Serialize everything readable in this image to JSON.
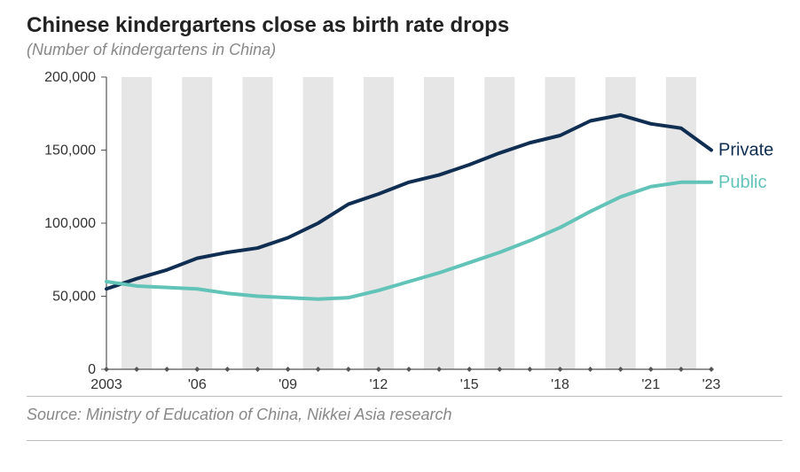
{
  "title": "Chinese kindergartens close as birth rate drops",
  "subtitle": "(Number of kindergartens in China)",
  "source": "Source: Ministry of Education of China, Nikkei Asia research",
  "chart": {
    "type": "line",
    "background_color": "#ffffff",
    "band_color": "#e6e6e6",
    "axis_color": "#555555",
    "tick_font_size": 16,
    "title_font_size": 24,
    "title_color": "#222222",
    "subtitle_font_size": 18,
    "subtitle_color": "#888888",
    "source_font_size": 18,
    "source_color": "#888888",
    "line_width": 4,
    "marker_on_axis": true,
    "x": {
      "start": 2003,
      "end": 2023,
      "ticks": [
        2003,
        2006,
        2009,
        2012,
        2015,
        2018,
        2021,
        2023
      ],
      "tick_labels": [
        "2003",
        "'06",
        "'09",
        "'12",
        "'15",
        "'18",
        "'21",
        "'23"
      ]
    },
    "y": {
      "min": 0,
      "max": 200000,
      "ticks": [
        0,
        50000,
        100000,
        150000,
        200000
      ],
      "tick_labels": [
        "0",
        "50,000",
        "100,000",
        "150,000",
        "200,000"
      ]
    },
    "series": [
      {
        "name": "Private",
        "color": "#0f2e52",
        "label_color": "#0f2e52",
        "years": [
          2003,
          2004,
          2005,
          2006,
          2007,
          2008,
          2009,
          2010,
          2011,
          2012,
          2013,
          2014,
          2015,
          2016,
          2017,
          2018,
          2019,
          2020,
          2021,
          2022,
          2023
        ],
        "values": [
          55000,
          62000,
          68000,
          76000,
          80000,
          83000,
          90000,
          100000,
          113000,
          120000,
          128000,
          133000,
          140000,
          148000,
          155000,
          160000,
          170000,
          174000,
          168000,
          165000,
          150000
        ]
      },
      {
        "name": "Public",
        "color": "#62c3b8",
        "label_color": "#62c3b8",
        "years": [
          2003,
          2004,
          2005,
          2006,
          2007,
          2008,
          2009,
          2010,
          2011,
          2012,
          2013,
          2014,
          2015,
          2016,
          2017,
          2018,
          2019,
          2020,
          2021,
          2022,
          2023
        ],
        "values": [
          60000,
          57000,
          56000,
          55000,
          52000,
          50000,
          49000,
          48000,
          49000,
          54000,
          60000,
          66000,
          73000,
          80000,
          88000,
          97000,
          108000,
          118000,
          125000,
          128000,
          128000
        ]
      }
    ]
  }
}
